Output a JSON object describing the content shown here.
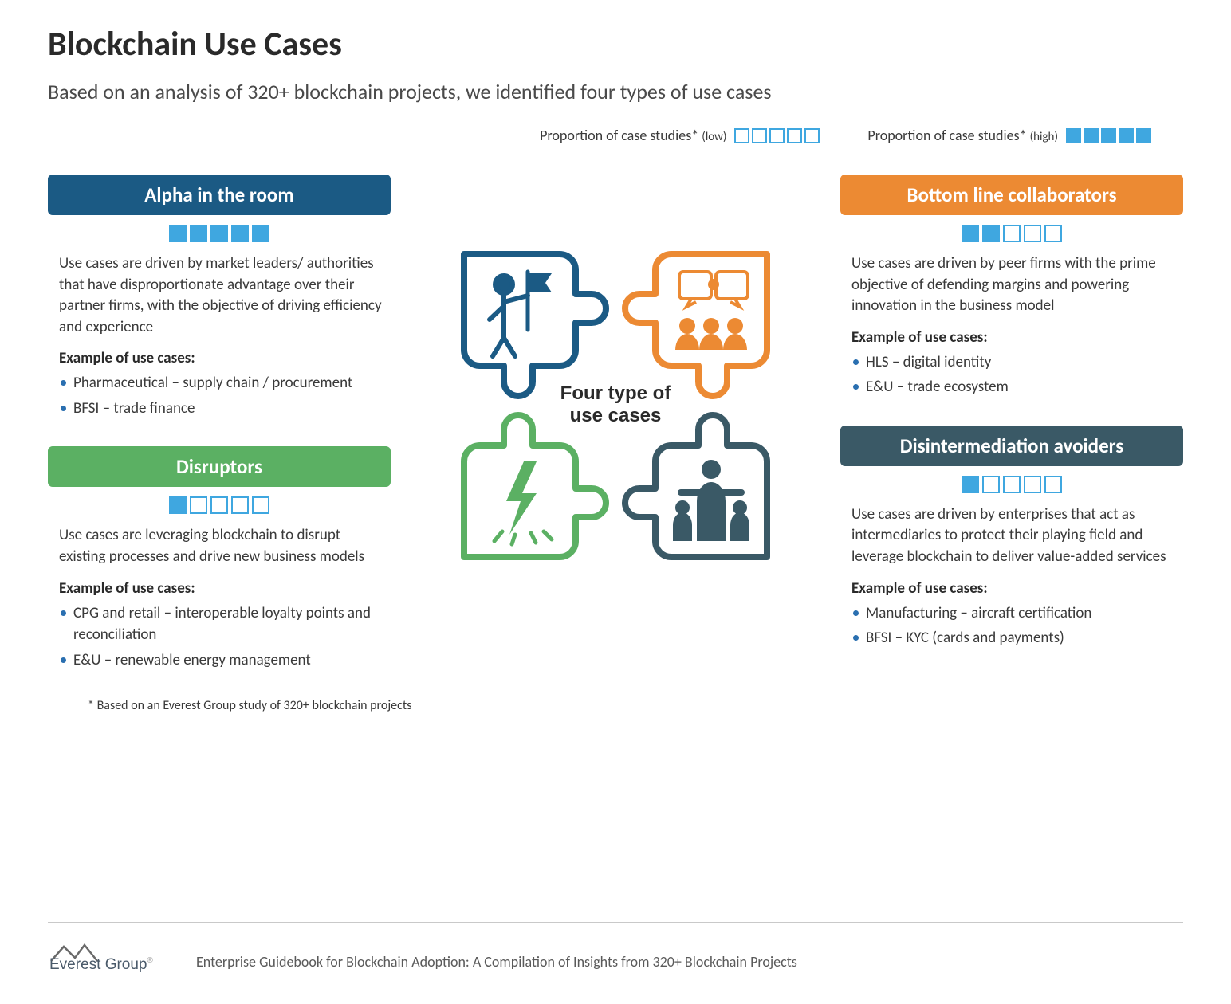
{
  "title": "Blockchain Use Cases",
  "subtitle": "Based on an analysis of 320+ blockchain projects, we identified four types of use cases",
  "legend": {
    "low_pre": "Proportion of case studies* ",
    "low_post": "(low)",
    "high_pre": "Proportion of case studies* ",
    "high_post": "(high)",
    "low_filled": 0,
    "high_filled": 5,
    "box_count": 5,
    "box_color": "#3fa7e0"
  },
  "center_label_line1": "Four type of",
  "center_label_line2": "use cases",
  "cards": {
    "alpha": {
      "title": "Alpha in the room",
      "header_bg": "#1b5a84",
      "filled": 5,
      "description": "Use cases are driven by market leaders/ authorities that have disproportionate advantage over their partner firms, with the objective of driving efficiency and experience",
      "examples_label": "Example of use cases:",
      "examples": [
        "Pharmaceutical – supply chain / procurement",
        "BFSI – trade finance"
      ]
    },
    "disruptors": {
      "title": "Disruptors",
      "header_bg": "#5bb063",
      "filled": 1,
      "description": "Use cases are leveraging blockchain to disrupt existing processes and drive new business models",
      "examples_label": "Example of use cases:",
      "examples": [
        "CPG and retail – interoperable loyalty points and reconciliation",
        "E&U – renewable energy management"
      ]
    },
    "bottom": {
      "title": "Bottom line collaborators",
      "header_bg": "#ec8a33",
      "filled": 2,
      "description": "Use cases are driven by peer firms with the prime objective of defending margins and powering innovation in the business model",
      "examples_label": "Example of use cases:",
      "examples": [
        "HLS – digital identity",
        "E&U – trade ecosystem"
      ]
    },
    "disintermediation": {
      "title": "Disintermediation avoiders",
      "header_bg": "#3a5966",
      "filled": 1,
      "description": "Use cases are driven by enterprises that act as intermediaries to protect their playing field and leverage blockchain to deliver value-added services",
      "examples_label": "Example of use cases:",
      "examples": [
        "Manufacturing – aircraft certification",
        "BFSI – KYC (cards and payments)"
      ]
    }
  },
  "diagram": {
    "colors": {
      "alpha": "#1b5a84",
      "bottom": "#ec8a33",
      "disruptors": "#5bb063",
      "disintermediation": "#3a5966"
    }
  },
  "footnote": "* Based on an Everest Group study of 320+ blockchain projects",
  "footer": {
    "brand": "Everest Group",
    "reg": "®",
    "tagline": "Enterprise Guidebook for Blockchain Adoption: A Compilation of Insights from 320+ Blockchain Projects"
  }
}
